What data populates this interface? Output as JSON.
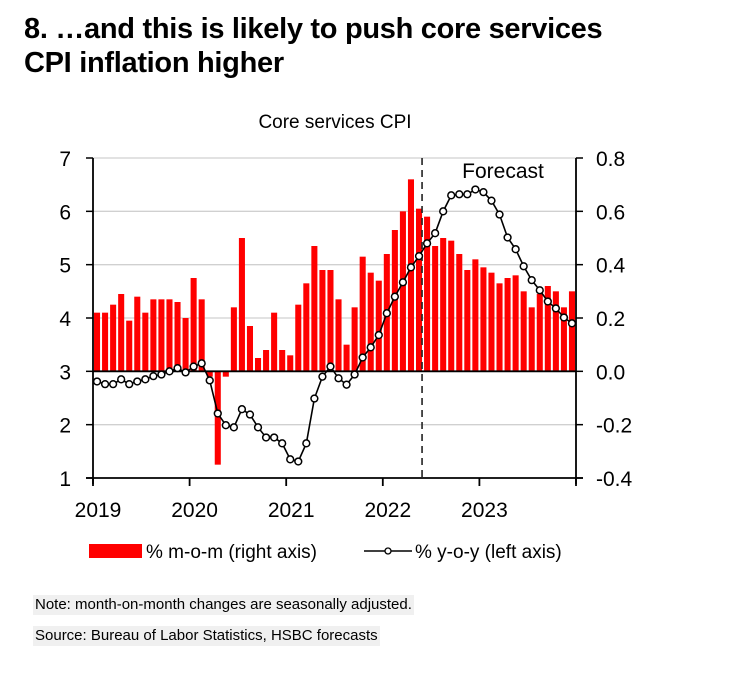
{
  "heading": {
    "line1": "8. …and this is likely to push core services",
    "line2": "CPI inflation higher"
  },
  "chart_data": {
    "type": "bar+line",
    "title": "Core services CPI",
    "annotation": "Forecast",
    "forecast_start": "2022-06",
    "x": {
      "start": "2019-01",
      "months": 60,
      "tick_labels": [
        "2019",
        "2020",
        "2021",
        "2022",
        "2023"
      ]
    },
    "left_axis": {
      "label": "% y-o-y",
      "range": [
        1,
        7
      ],
      "ticks": [
        "7",
        "6",
        "5",
        "4",
        "3",
        "2",
        "1"
      ]
    },
    "right_axis": {
      "label": "% m-o-m",
      "range": [
        -0.4,
        0.8
      ],
      "ticks": [
        "0.8",
        "0.6",
        "0.4",
        "0.2",
        "0.0",
        "-0.2",
        "-0.4"
      ]
    },
    "grid": true,
    "legend_position": "bottom",
    "series": [
      {
        "name": "% m-o-m (right axis)",
        "type": "bar",
        "axis": "right",
        "color": "#ff0000",
        "values": [
          0.22,
          0.22,
          0.25,
          0.29,
          0.19,
          0.28,
          0.22,
          0.27,
          0.27,
          0.27,
          0.26,
          0.2,
          0.35,
          0.27,
          -0.02,
          -0.35,
          -0.02,
          0.24,
          0.5,
          0.17,
          0.05,
          0.08,
          0.22,
          0.08,
          0.06,
          0.25,
          0.33,
          0.47,
          0.38,
          0.38,
          0.27,
          0.1,
          0.24,
          0.43,
          0.37,
          0.34,
          0.44,
          0.53,
          0.6,
          0.72,
          0.61,
          0.58,
          0.47,
          0.5,
          0.49,
          0.44,
          0.38,
          0.42,
          0.39,
          0.37,
          0.33,
          0.35,
          0.36,
          0.3,
          0.24,
          0.29,
          0.32,
          0.3,
          0.24,
          0.3
        ]
      },
      {
        "name": "% y-o-y (left axis)",
        "type": "line",
        "axis": "left",
        "color": "#000000",
        "values": [
          2.81,
          2.76,
          2.76,
          2.85,
          2.76,
          2.81,
          2.85,
          2.91,
          2.94,
          3.0,
          3.06,
          2.98,
          3.09,
          3.15,
          2.83,
          2.21,
          1.99,
          1.95,
          2.29,
          2.19,
          1.95,
          1.76,
          1.76,
          1.65,
          1.35,
          1.31,
          1.65,
          2.49,
          2.9,
          3.09,
          2.87,
          2.75,
          2.94,
          3.26,
          3.45,
          3.68,
          4.09,
          4.4,
          4.67,
          4.95,
          5.16,
          5.4,
          5.59,
          6.0,
          6.3,
          6.32,
          6.32,
          6.41,
          6.36,
          6.2,
          5.94,
          5.51,
          5.29,
          4.97,
          4.71,
          4.52,
          4.31,
          4.18,
          4.01,
          3.9
        ]
      }
    ]
  },
  "notes": {
    "note": "Note: month-on-month changes are seasonally adjusted.",
    "source": "Source: Bureau of Labor Statistics, HSBC forecasts"
  }
}
